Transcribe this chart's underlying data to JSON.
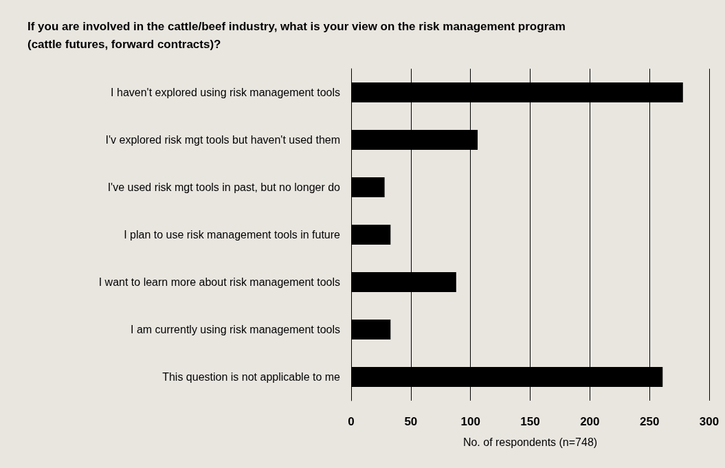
{
  "chart_data": {
    "type": "bar",
    "orientation": "horizontal",
    "title": "If you are involved in the cattle/beef industry, what is your view on the risk management program (cattle futures, forward contracts)?",
    "xlabel": "No. of respondents (n=748)",
    "categories": [
      "I haven't explored using risk management tools",
      "I'v explored risk mgt tools but haven't used them",
      "I've used risk mgt tools in past, but no longer do",
      "I plan to use risk management tools in future",
      "I want to learn more about risk management tools",
      "I am currently using risk management tools",
      "This question is not applicable to me"
    ],
    "values": [
      278,
      106,
      28,
      33,
      88,
      33,
      261
    ],
    "color": "#000000",
    "xlim": [
      0,
      300
    ],
    "xticks": [
      0,
      50,
      100,
      150,
      200,
      250,
      300
    ],
    "grid": "x"
  }
}
